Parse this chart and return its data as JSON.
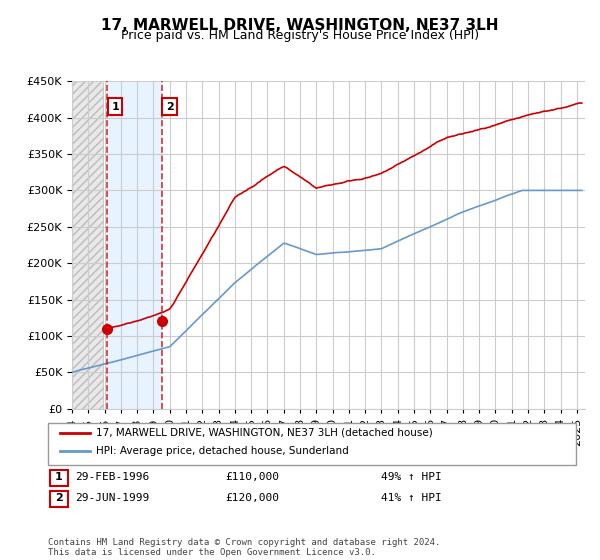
{
  "title": "17, MARWELL DRIVE, WASHINGTON, NE37 3LH",
  "subtitle": "Price paid vs. HM Land Registry's House Price Index (HPI)",
  "ylim": [
    0,
    450000
  ],
  "xlim_start": 1994.0,
  "xlim_end": 2025.5,
  "sale1_year": 1996.17,
  "sale1_price": 110000,
  "sale2_year": 1999.5,
  "sale2_price": 120000,
  "red_line_color": "#cc0000",
  "blue_line_color": "#6699cc",
  "blue_fill_color": "#ddeeff",
  "legend_label_red": "17, MARWELL DRIVE, WASHINGTON, NE37 3LH (detached house)",
  "legend_label_blue": "HPI: Average price, detached house, Sunderland",
  "footer": "Contains HM Land Registry data © Crown copyright and database right 2024.\nThis data is licensed under the Open Government Licence v3.0.",
  "background_color": "#ffffff",
  "grid_color": "#cccccc",
  "title_fontsize": 11,
  "subtitle_fontsize": 9,
  "tick_fontsize": 8
}
